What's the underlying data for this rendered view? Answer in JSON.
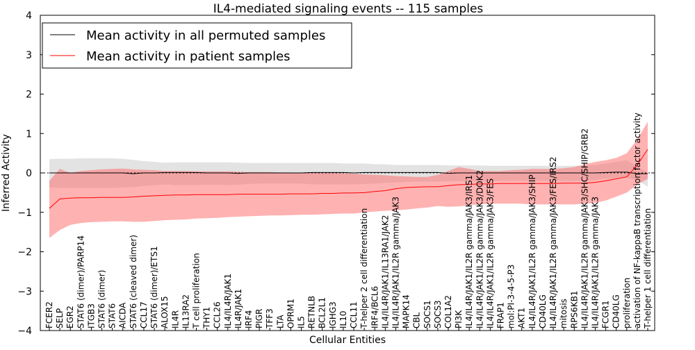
{
  "chart_data": {
    "type": "line",
    "title": "IL4-mediated signaling events -- 115 samples",
    "xlabel": "Cellular Entities",
    "ylabel": "Inferred Activity",
    "ylim": [
      -4,
      4
    ],
    "yticks": [
      -4,
      -3,
      -2,
      -1,
      0,
      1,
      2,
      3,
      4
    ],
    "ytick_labels": [
      "−4",
      "−3",
      "−2",
      "−1",
      "0",
      "1",
      "2",
      "3",
      "4"
    ],
    "legend_position": "top-left",
    "colors": {
      "permuted_line": "#000000",
      "permuted_band": "#c8c8c8",
      "patient_line": "#ff0000",
      "patient_band": "#ff6666",
      "zero_line": "#000000"
    },
    "tick_labels": [
      "FCER2",
      "SELP",
      "EGR2",
      "STAT6 (dimer)/PARP14",
      "ITGB3",
      "STAT6 (dimer)",
      "STAT6",
      "AICDA",
      "STAT6 (cleaved dimer)",
      "CCL17",
      "STAT6 (dimer)/ETS1",
      "ALOX15",
      "IL4R",
      "IL13RA2",
      "T cell proliferation",
      "THY1",
      "CCL26",
      "IL4/IL4R/JAK1",
      "IL4R/JAK1",
      "IRF4",
      "PIGR",
      "TFF3",
      "LTA",
      "OPRM1",
      "IL5",
      "RETNLB",
      "BCL2L1",
      "IGHG3",
      "IL10",
      "CCL11",
      "T-helper 2 cell differentiation",
      "IRF4/BCL6",
      "IL4/IL4R/JAK1/IL13RA1/JAK2",
      "IL4/IL4R/JAK1/IL2R gamma/JAK3",
      "MAPK14",
      "CBL",
      "SOCS1",
      "SOCS3",
      "COL1A2",
      "PI3K",
      "IL4/IL4R/JAK1/IL2R gamma/JAK3/IRS1",
      "IL4/IL4R/JAK1/IL2R gamma/JAK3/DOK2",
      "IL4/IL4R/JAK1/IL2R gamma/JAK3/FES",
      "FRAP1",
      "mol:PI-3-4-5-P3",
      "AKT1",
      "IL4/IL4R/JAK1/IL2R gamma/JAK3/SHIP",
      "CD40LG",
      "IL4/IL4R/JAK1/IL2R gamma/JAK3/FES/IRS2",
      "mitosis",
      "RPS6KB1",
      "IL4/IL4R/JAK1/IL2R gamma/JAK3/SHC/SHIP/GRB2",
      "IL4/IL4R/JAK1/IL2R gamma/JAK3",
      "FCGR1",
      "CD40LG",
      "proliferation",
      "activation of NF-kappaB transcription factor activity",
      "T-helper 1 cell differentiation"
    ],
    "series": [
      {
        "name": "Mean activity in all permuted samples",
        "mean": [
          0.0,
          0.0,
          0.0,
          0.0,
          0.0,
          0.0,
          0.0,
          0.0,
          -0.02,
          0.0,
          0.0,
          0.01,
          0.01,
          0.01,
          0.01,
          0.0,
          0.0,
          0.0,
          -0.01,
          0.0,
          0.0,
          0.0,
          0.0,
          0.0,
          0.0,
          0.01,
          0.01,
          0.01,
          0.01,
          0.0,
          0.01,
          0.01,
          0.01,
          0.01,
          0.01,
          0.01,
          0.01,
          0.01,
          -0.01,
          0.0,
          0.0,
          0.0,
          0.0,
          0.0,
          0.0,
          0.0,
          0.0,
          0.0,
          0.0,
          0.0,
          0.0,
          0.0,
          0.0,
          0.01,
          0.02,
          0.02,
          -0.02,
          -0.02
        ],
        "lower": [
          -0.37,
          -0.38,
          -0.38,
          -0.38,
          -0.38,
          -0.38,
          -0.38,
          -0.37,
          -0.36,
          -0.33,
          -0.31,
          -0.29,
          -0.31,
          -0.31,
          -0.31,
          -0.3,
          -0.3,
          -0.31,
          -0.3,
          -0.28,
          -0.27,
          -0.27,
          -0.27,
          -0.27,
          -0.27,
          -0.29,
          -0.29,
          -0.29,
          -0.29,
          -0.29,
          -0.28,
          -0.27,
          -0.25,
          -0.24,
          -0.23,
          -0.22,
          -0.22,
          -0.22,
          -0.21,
          -0.21,
          -0.21,
          -0.21,
          -0.2,
          -0.2,
          -0.2,
          -0.2,
          -0.2,
          -0.2,
          -0.2,
          -0.2,
          -0.2,
          -0.2,
          -0.18,
          -0.15,
          -0.13,
          -0.12,
          -0.18,
          -0.35
        ],
        "upper": [
          0.35,
          0.36,
          0.36,
          0.37,
          0.37,
          0.37,
          0.37,
          0.36,
          0.33,
          0.3,
          0.28,
          0.26,
          0.27,
          0.27,
          0.27,
          0.27,
          0.27,
          0.27,
          0.26,
          0.25,
          0.25,
          0.25,
          0.25,
          0.25,
          0.25,
          0.25,
          0.25,
          0.25,
          0.24,
          0.24,
          0.24,
          0.22,
          0.22,
          0.2,
          0.2,
          0.2,
          0.2,
          0.2,
          0.19,
          0.19,
          0.19,
          0.19,
          0.18,
          0.18,
          0.18,
          0.18,
          0.18,
          0.18,
          0.18,
          0.18,
          0.18,
          0.18,
          0.2,
          0.24,
          0.28,
          0.32,
          0.16,
          0.0
        ]
      },
      {
        "name": "Mean activity in patient samples",
        "mean": [
          -0.9,
          -0.66,
          -0.64,
          -0.63,
          -0.63,
          -0.62,
          -0.62,
          -0.62,
          -0.61,
          -0.59,
          -0.58,
          -0.57,
          -0.56,
          -0.56,
          -0.55,
          -0.55,
          -0.55,
          -0.55,
          -0.54,
          -0.54,
          -0.54,
          -0.54,
          -0.54,
          -0.53,
          -0.53,
          -0.53,
          -0.52,
          -0.52,
          -0.51,
          -0.51,
          -0.5,
          -0.47,
          -0.45,
          -0.4,
          -0.37,
          -0.36,
          -0.35,
          -0.35,
          -0.32,
          -0.3,
          -0.29,
          -0.28,
          -0.28,
          -0.27,
          -0.27,
          -0.27,
          -0.27,
          -0.27,
          -0.27,
          -0.26,
          -0.26,
          -0.26,
          -0.24,
          -0.2,
          -0.15,
          -0.1,
          0.2,
          0.6
        ],
        "lower": [
          -1.65,
          -1.45,
          -1.32,
          -1.27,
          -1.25,
          -1.24,
          -1.23,
          -1.23,
          -1.24,
          -1.24,
          -1.22,
          -1.2,
          -1.19,
          -1.18,
          -1.16,
          -1.15,
          -1.14,
          -1.12,
          -1.11,
          -1.1,
          -1.09,
          -1.08,
          -1.08,
          -1.07,
          -1.06,
          -1.06,
          -1.05,
          -1.04,
          -1.03,
          -1.03,
          -1.0,
          -0.98,
          -0.96,
          -0.95,
          -0.93,
          -0.9,
          -0.88,
          -0.84,
          -0.86,
          -0.85,
          -0.82,
          -0.8,
          -0.78,
          -0.78,
          -0.78,
          -0.78,
          -0.8,
          -0.8,
          -0.8,
          -0.8,
          -0.8,
          -0.78,
          -0.76,
          -0.7,
          -0.6,
          -0.5,
          -0.3,
          -0.15
        ],
        "upper": [
          -0.2,
          0.1,
          0.0,
          0.05,
          0.07,
          0.09,
          0.1,
          0.11,
          0.09,
          0.08,
          0.07,
          0.05,
          0.05,
          0.05,
          0.04,
          0.04,
          0.04,
          0.04,
          0.03,
          0.02,
          0.02,
          0.02,
          0.01,
          0.01,
          0.0,
          0.0,
          0.0,
          0.0,
          -0.01,
          -0.02,
          -0.04,
          -0.05,
          -0.06,
          -0.08,
          -0.09,
          -0.1,
          -0.1,
          -0.05,
          0.05,
          0.15,
          0.1,
          0.05,
          0.05,
          0.05,
          0.07,
          0.08,
          0.1,
          0.1,
          0.1,
          0.12,
          0.15,
          0.22,
          0.28,
          0.32,
          0.38,
          0.5,
          0.85,
          1.3
        ]
      }
    ]
  }
}
